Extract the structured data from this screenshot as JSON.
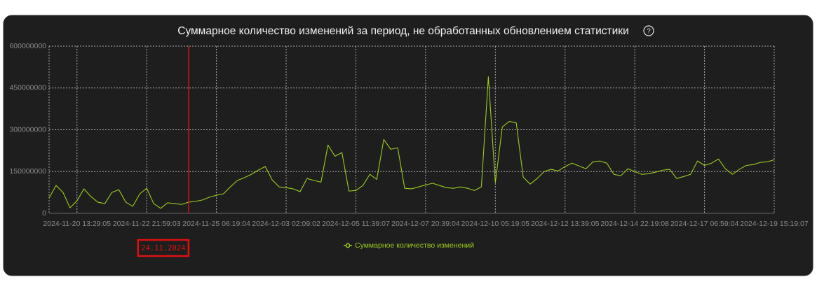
{
  "chart_data": {
    "type": "line",
    "title": "Суммарное количество изменений за период, не обработанных обновлением статистики",
    "categories": [
      null,
      null,
      null,
      null,
      "2024-11-20 13:29:05",
      null,
      null,
      null,
      null,
      null,
      null,
      null,
      null,
      null,
      "2024-11-22 21:59:03",
      null,
      null,
      null,
      null,
      null,
      null,
      null,
      null,
      null,
      "2024-11-25 06:19:04",
      null,
      null,
      null,
      null,
      null,
      null,
      null,
      null,
      null,
      "2024-12-03 02:09:02",
      null,
      null,
      null,
      null,
      null,
      null,
      null,
      null,
      null,
      "2024-12-05 11:39:07",
      null,
      null,
      null,
      null,
      null,
      null,
      null,
      null,
      null,
      "2024-12-07 20:39:04",
      null,
      null,
      null,
      null,
      null,
      null,
      null,
      null,
      null,
      "2024-12-10 05:19:05",
      null,
      null,
      null,
      null,
      null,
      null,
      null,
      null,
      null,
      "2024-12-12 13:39:05",
      null,
      null,
      null,
      null,
      null,
      null,
      null,
      null,
      null,
      "2024-12-14 22:19:08",
      null,
      null,
      null,
      null,
      null,
      null,
      null,
      null,
      null,
      "2024-12-17 06:59:04",
      null,
      null,
      null,
      null,
      null,
      null,
      null,
      null,
      null,
      "2024-12-19 15:19:07"
    ],
    "series": [
      {
        "name": "Суммарное количество изменений",
        "color": "#9acd1e",
        "values": [
          55000000,
          100000000,
          75000000,
          20000000,
          45000000,
          88000000,
          60000000,
          40000000,
          35000000,
          75000000,
          85000000,
          40000000,
          25000000,
          70000000,
          90000000,
          35000000,
          18000000,
          38000000,
          35000000,
          32000000,
          40000000,
          43000000,
          48000000,
          58000000,
          65000000,
          70000000,
          95000000,
          118000000,
          128000000,
          140000000,
          155000000,
          168000000,
          120000000,
          95000000,
          92000000,
          88000000,
          78000000,
          125000000,
          118000000,
          112000000,
          245000000,
          205000000,
          218000000,
          80000000,
          82000000,
          100000000,
          140000000,
          122000000,
          265000000,
          230000000,
          235000000,
          90000000,
          88000000,
          95000000,
          102000000,
          108000000,
          100000000,
          92000000,
          90000000,
          95000000,
          90000000,
          82000000,
          95000000,
          490000000,
          110000000,
          310000000,
          330000000,
          325000000,
          130000000,
          105000000,
          125000000,
          150000000,
          158000000,
          152000000,
          168000000,
          180000000,
          170000000,
          160000000,
          185000000,
          188000000,
          180000000,
          140000000,
          135000000,
          160000000,
          150000000,
          140000000,
          142000000,
          148000000,
          155000000,
          158000000,
          125000000,
          132000000,
          140000000,
          188000000,
          172000000,
          180000000,
          195000000,
          160000000,
          140000000,
          158000000,
          172000000,
          175000000,
          183000000,
          185000000,
          192000000
        ]
      }
    ],
    "ylim": [
      0,
      600000000
    ],
    "yticks": [
      0,
      150000000,
      300000000,
      450000000,
      600000000
    ],
    "grid": true,
    "marker_line": {
      "index": 20,
      "label": "24.11.2024",
      "color": "#e01010"
    }
  }
}
